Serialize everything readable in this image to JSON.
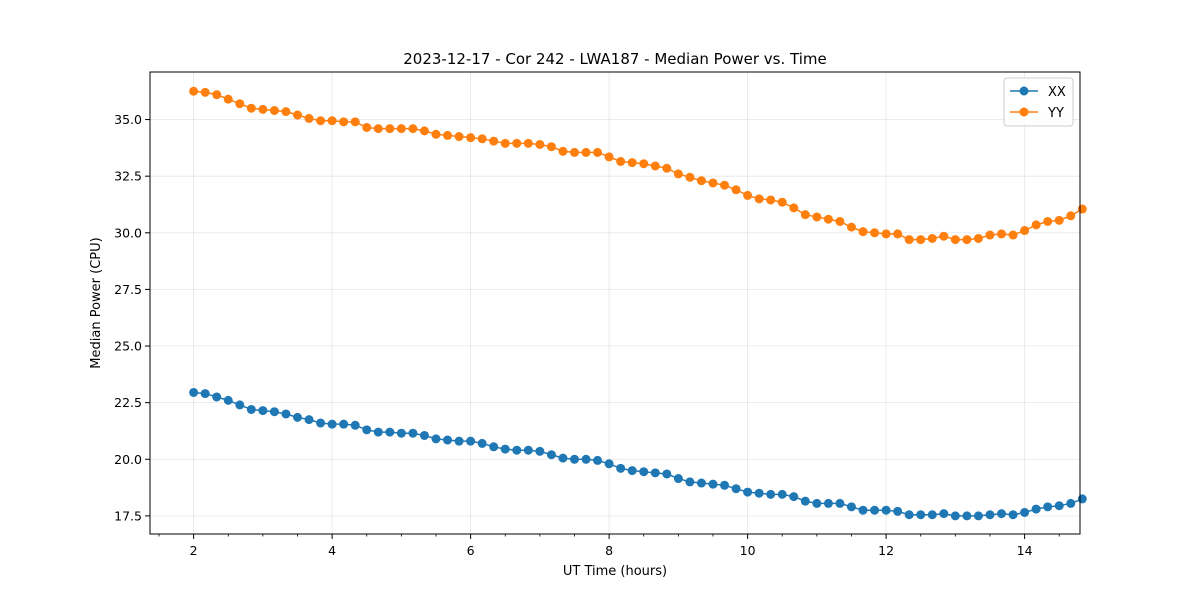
{
  "chart_data": {
    "type": "line",
    "title": "2023-12-17 - Cor 242 - LWA187 - Median Power vs. Time",
    "xlabel": "UT Time (hours)",
    "ylabel": "Median Power (CPU)",
    "xlim": [
      1.37,
      14.8
    ],
    "ylim": [
      16.7,
      37.1
    ],
    "xticks": [
      2,
      4,
      6,
      8,
      10,
      12,
      14
    ],
    "xtick_labels": [
      "2",
      "4",
      "6",
      "8",
      "10",
      "12",
      "14"
    ],
    "yticks": [
      17.5,
      20.0,
      22.5,
      25.0,
      27.5,
      30.0,
      32.5,
      35.0
    ],
    "ytick_labels": [
      "17.5",
      "20.0",
      "22.5",
      "25.0",
      "27.5",
      "30.0",
      "32.5",
      "35.0"
    ],
    "x_minor_step": 0.5,
    "grid": true,
    "legend_position": "top-right",
    "x": [
      2.0,
      2.1667,
      2.3333,
      2.5,
      2.6667,
      2.8333,
      3.0,
      3.1667,
      3.3333,
      3.5,
      3.6667,
      3.8333,
      4.0,
      4.1667,
      4.3333,
      4.5,
      4.6667,
      4.8333,
      5.0,
      5.1667,
      5.3333,
      5.5,
      5.6667,
      5.8333,
      6.0,
      6.1667,
      6.3333,
      6.5,
      6.6667,
      6.8333,
      7.0,
      7.1667,
      7.3333,
      7.5,
      7.6667,
      7.8333,
      8.0,
      8.1667,
      8.3333,
      8.5,
      8.6667,
      8.8333,
      9.0,
      9.1667,
      9.3333,
      9.5,
      9.6667,
      9.8333,
      10.0,
      10.1667,
      10.3333,
      10.5,
      10.6667,
      10.8333,
      11.0,
      11.1667,
      11.3333,
      11.5,
      11.6667,
      11.8333,
      12.0,
      12.1667,
      12.3333,
      12.5,
      12.6667,
      12.8333,
      13.0,
      13.1667,
      13.3333,
      13.5,
      13.6667,
      13.8333,
      14.0,
      14.1667,
      14.3333,
      14.5,
      14.6667,
      14.8333
    ],
    "series": [
      {
        "name": "XX",
        "color": "#1f77b4",
        "values": [
          22.95,
          22.9,
          22.75,
          22.6,
          22.4,
          22.2,
          22.15,
          22.1,
          22.0,
          21.85,
          21.75,
          21.6,
          21.55,
          21.55,
          21.5,
          21.3,
          21.2,
          21.2,
          21.15,
          21.15,
          21.05,
          20.9,
          20.85,
          20.8,
          20.8,
          20.7,
          20.55,
          20.45,
          20.4,
          20.4,
          20.35,
          20.2,
          20.05,
          20.0,
          20.0,
          19.95,
          19.8,
          19.6,
          19.5,
          19.45,
          19.4,
          19.35,
          19.15,
          19.0,
          18.95,
          18.9,
          18.85,
          18.7,
          18.55,
          18.5,
          18.45,
          18.45,
          18.35,
          18.15,
          18.05,
          18.05,
          18.05,
          17.9,
          17.75,
          17.75,
          17.75,
          17.7,
          17.55,
          17.55,
          17.55,
          17.6,
          17.5,
          17.5,
          17.5,
          17.55,
          17.6,
          17.55,
          17.65,
          17.8,
          17.9,
          17.95,
          18.05,
          18.25
        ]
      },
      {
        "name": "YY",
        "color": "#ff7f0e",
        "values": [
          36.25,
          36.2,
          36.1,
          35.9,
          35.7,
          35.5,
          35.45,
          35.4,
          35.35,
          35.2,
          35.05,
          34.95,
          34.95,
          34.9,
          34.9,
          34.65,
          34.6,
          34.6,
          34.6,
          34.6,
          34.5,
          34.35,
          34.3,
          34.25,
          34.2,
          34.15,
          34.05,
          33.95,
          33.95,
          33.95,
          33.9,
          33.8,
          33.6,
          33.55,
          33.55,
          33.55,
          33.35,
          33.15,
          33.1,
          33.05,
          32.95,
          32.85,
          32.6,
          32.45,
          32.3,
          32.2,
          32.1,
          31.9,
          31.65,
          31.5,
          31.45,
          31.35,
          31.1,
          30.8,
          30.7,
          30.6,
          30.5,
          30.25,
          30.05,
          30.0,
          29.95,
          29.95,
          29.7,
          29.7,
          29.75,
          29.85,
          29.7,
          29.7,
          29.75,
          29.9,
          29.95,
          29.9,
          30.1,
          30.35,
          30.5,
          30.55,
          30.75,
          31.05
        ]
      }
    ]
  }
}
